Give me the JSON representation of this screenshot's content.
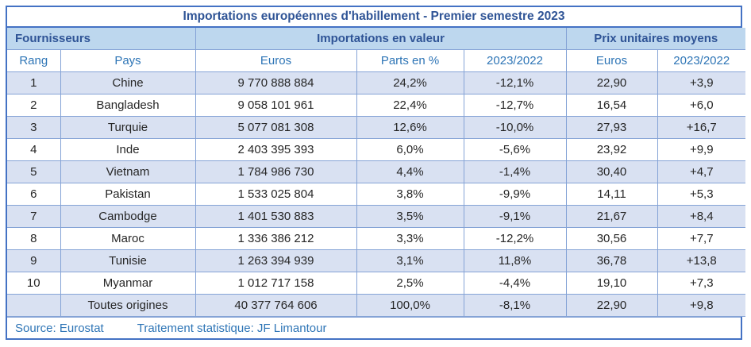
{
  "title": "Importations européennes d'habillement - Premier semestre 2023",
  "table": {
    "groups": [
      {
        "label": "Fournisseurs"
      },
      {
        "label": "Importations en valeur"
      },
      {
        "label": "Prix unitaires moyens"
      }
    ],
    "columns": [
      "Rang",
      "Pays",
      "Euros",
      "Parts en %",
      "2023/2022",
      "Euros",
      "2023/2022"
    ],
    "rows": [
      {
        "rank": "1",
        "country": "Chine",
        "euros": "9 770 888 884",
        "share": "24,2%",
        "change_value": "-12,1%",
        "unit_price": "22,90",
        "unit_price_change": "+3,9"
      },
      {
        "rank": "2",
        "country": "Bangladesh",
        "euros": "9 058 101 961",
        "share": "22,4%",
        "change_value": "-12,7%",
        "unit_price": "16,54",
        "unit_price_change": "+6,0"
      },
      {
        "rank": "3",
        "country": "Turquie",
        "euros": "5 077 081 308",
        "share": "12,6%",
        "change_value": "-10,0%",
        "unit_price": "27,93",
        "unit_price_change": "+16,7"
      },
      {
        "rank": "4",
        "country": "Inde",
        "euros": "2 403 395 393",
        "share": "6,0%",
        "change_value": "-5,6%",
        "unit_price": "23,92",
        "unit_price_change": "+9,9"
      },
      {
        "rank": "5",
        "country": "Vietnam",
        "euros": "1 784 986 730",
        "share": "4,4%",
        "change_value": "-1,4%",
        "unit_price": "30,40",
        "unit_price_change": "+4,7"
      },
      {
        "rank": "6",
        "country": "Pakistan",
        "euros": "1 533 025 804",
        "share": "3,8%",
        "change_value": "-9,9%",
        "unit_price": "14,11",
        "unit_price_change": "+5,3"
      },
      {
        "rank": "7",
        "country": "Cambodge",
        "euros": "1 401 530 883",
        "share": "3,5%",
        "change_value": "-9,1%",
        "unit_price": "21,67",
        "unit_price_change": "+8,4"
      },
      {
        "rank": "8",
        "country": "Maroc",
        "euros": "1 336 386 212",
        "share": "3,3%",
        "change_value": "-12,2%",
        "unit_price": "30,56",
        "unit_price_change": "+7,7"
      },
      {
        "rank": "9",
        "country": "Tunisie",
        "euros": "1 263 394 939",
        "share": "3,1%",
        "change_value": "11,8%",
        "unit_price": "36,78",
        "unit_price_change": "+13,8"
      },
      {
        "rank": "10",
        "country": "Myanmar",
        "euros": "1 012 717 158",
        "share": "2,5%",
        "change_value": "-4,4%",
        "unit_price": "19,10",
        "unit_price_change": "+7,3"
      },
      {
        "rank": "",
        "country": "Toutes origines",
        "euros": "40 377 764 606",
        "share": "100,0%",
        "change_value": "-8,1%",
        "unit_price": "22,90",
        "unit_price_change": "+9,8"
      }
    ]
  },
  "footer": {
    "source": "Source: Eurostat",
    "processing": "Traitement statistique: JF Limantour"
  },
  "colors": {
    "outer_border": "#4472C4",
    "inner_border": "#85A3D6",
    "group_header_bg": "#BDD7EE",
    "stripe_bg": "#D9E1F2",
    "title_text": "#2F5496",
    "subheader_text": "#2E75B6",
    "data_text": "#262626",
    "footer_text": "#2E75B6"
  },
  "chart_data": {
    "type": "table",
    "title": "Importations européennes d'habillement - Premier semestre 2023",
    "column_groups": [
      {
        "label": "Fournisseurs",
        "span": [
          "Rang",
          "Pays"
        ]
      },
      {
        "label": "Importations en valeur",
        "span": [
          "Euros",
          "Parts en %",
          "2023/2022"
        ]
      },
      {
        "label": "Prix unitaires moyens",
        "span": [
          "Euros",
          "2023/2022"
        ]
      }
    ],
    "columns": [
      "Rang",
      "Pays",
      "Euros (valeur)",
      "Parts en %",
      "Variation valeur 2023/2022 (%)",
      "Prix unitaire moyen (Euros)",
      "Variation prix 2023/2022"
    ],
    "rows": [
      [
        1,
        "Chine",
        9770888884,
        24.2,
        -12.1,
        22.9,
        3.9
      ],
      [
        2,
        "Bangladesh",
        9058101961,
        22.4,
        -12.7,
        16.54,
        6.0
      ],
      [
        3,
        "Turquie",
        5077081308,
        12.6,
        -10.0,
        27.93,
        16.7
      ],
      [
        4,
        "Inde",
        2403395393,
        6.0,
        -5.6,
        23.92,
        9.9
      ],
      [
        5,
        "Vietnam",
        1784986730,
        4.4,
        -1.4,
        30.4,
        4.7
      ],
      [
        6,
        "Pakistan",
        1533025804,
        3.8,
        -9.9,
        14.11,
        5.3
      ],
      [
        7,
        "Cambodge",
        1401530883,
        3.5,
        -9.1,
        21.67,
        8.4
      ],
      [
        8,
        "Maroc",
        1336386212,
        3.3,
        -12.2,
        30.56,
        7.7
      ],
      [
        9,
        "Tunisie",
        1263394939,
        3.1,
        11.8,
        36.78,
        13.8
      ],
      [
        10,
        "Myanmar",
        1012717158,
        2.5,
        -4.4,
        19.1,
        7.3
      ],
      [
        null,
        "Toutes origines",
        40377764606,
        100.0,
        -8.1,
        22.9,
        9.8
      ]
    ],
    "source": "Source: Eurostat",
    "processing": "Traitement statistique: JF Limantour"
  }
}
